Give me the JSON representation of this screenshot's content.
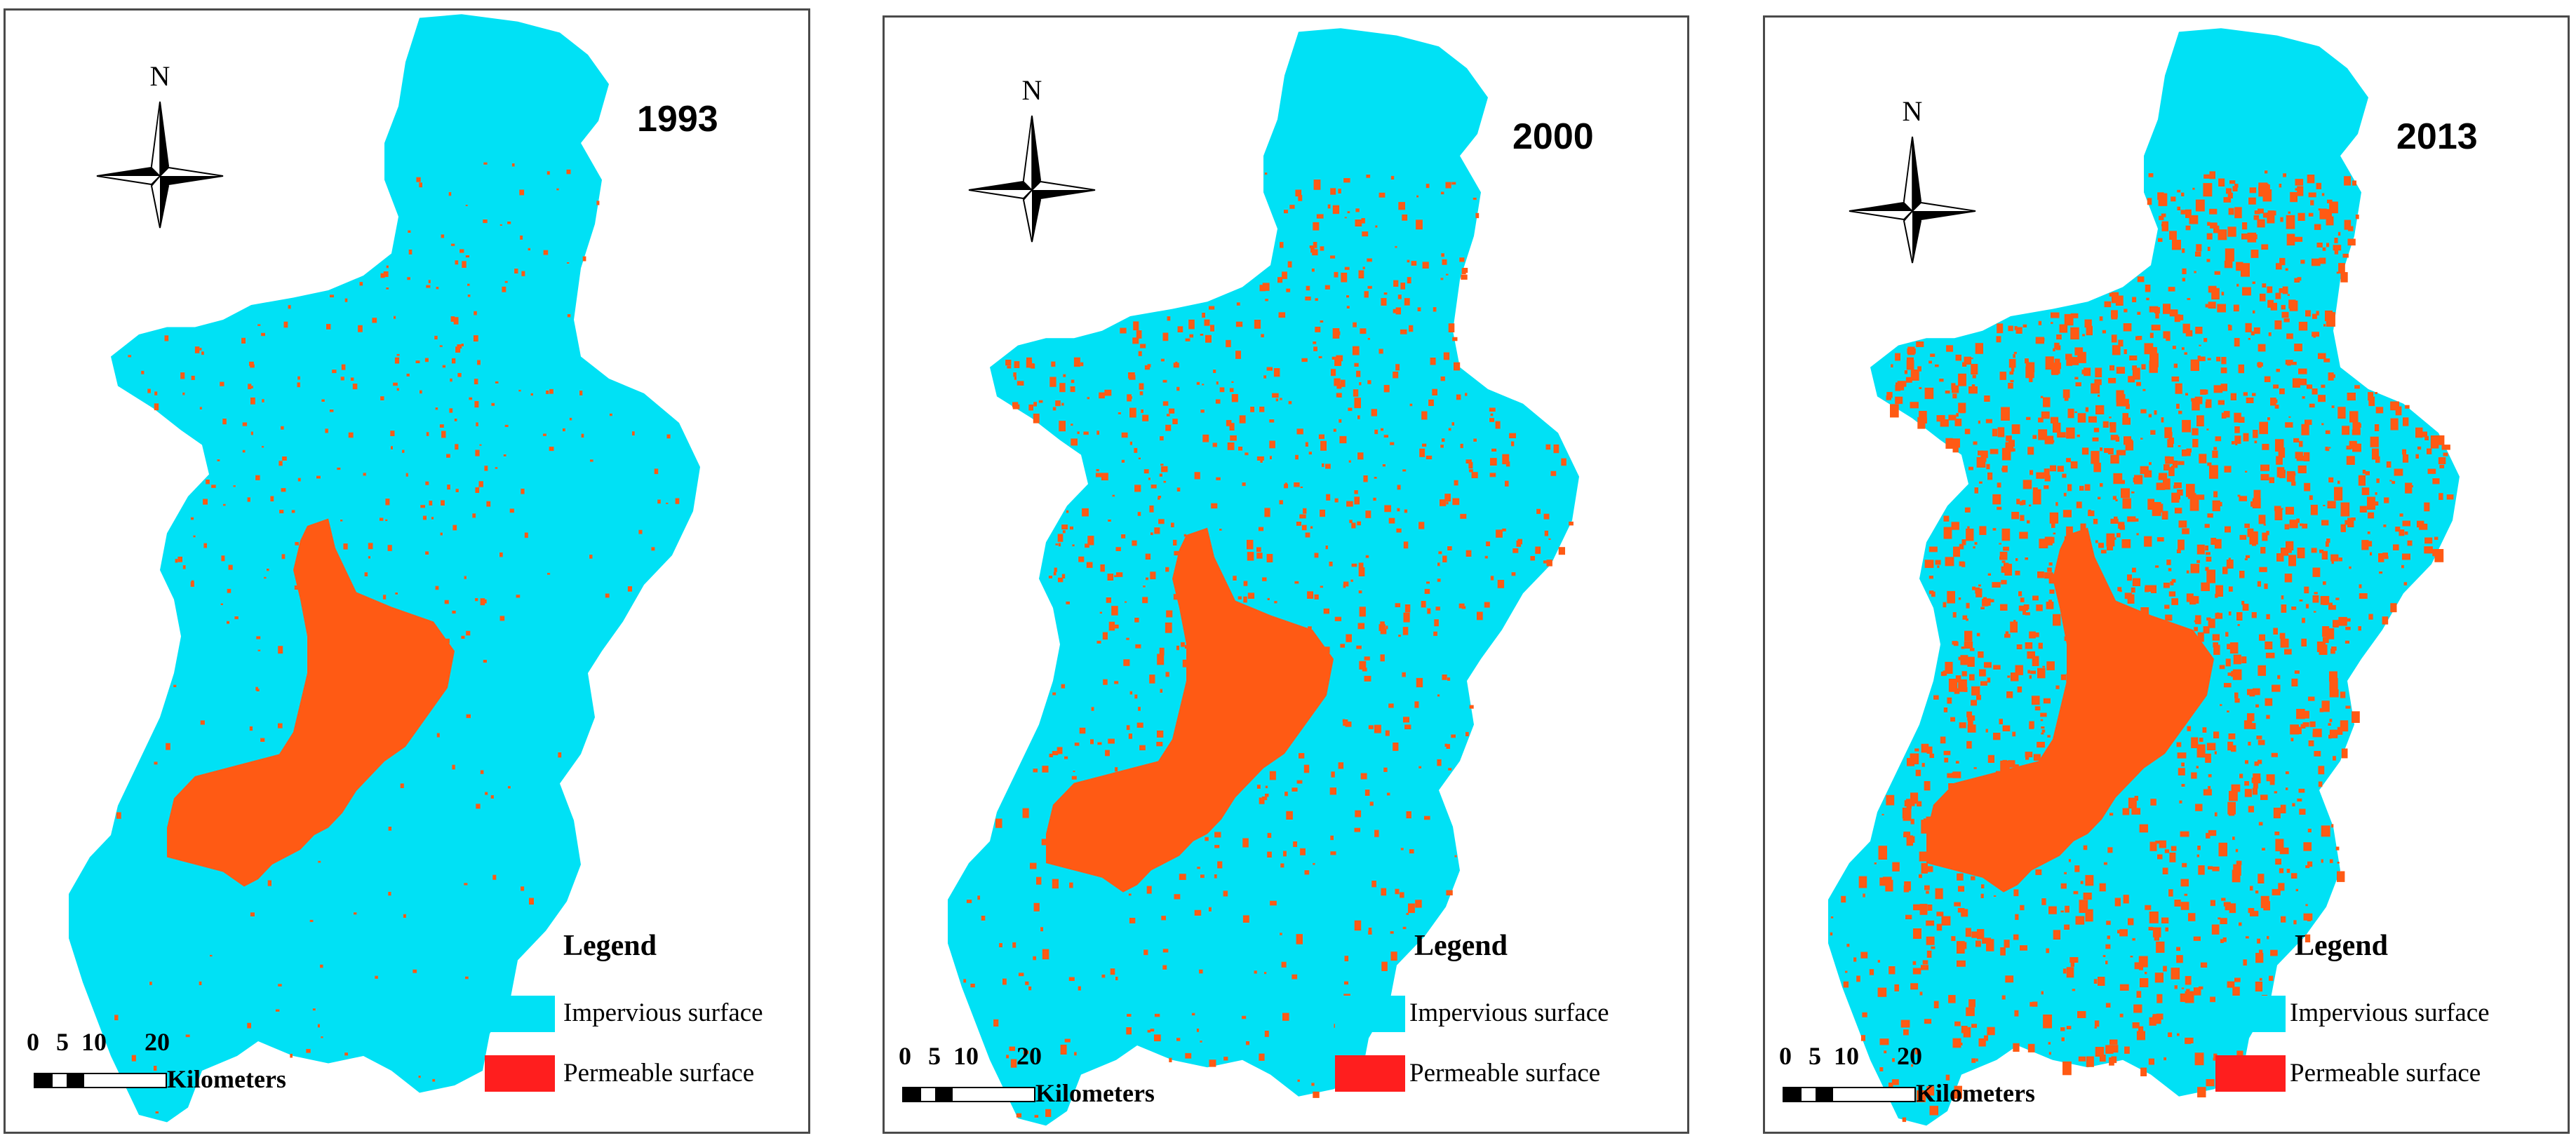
{
  "colors": {
    "impervious": "#00e1f5",
    "lake": "#ff5a14",
    "permeable_swatch": "#ff1e1e",
    "frame": "#4a4a4a"
  },
  "north_label": "N",
  "legend": {
    "title": "Legend",
    "items": [
      {
        "label": "Impervious surface",
        "color": "#00e1f5"
      },
      {
        "label": "Permeable surface",
        "color": "#ff1e1e"
      }
    ]
  },
  "scale": {
    "ticks": [
      "0",
      "5",
      "10",
      "20"
    ],
    "unit": "Kilometers"
  },
  "panels": [
    {
      "year": "1993",
      "red_coverage": 0.05
    },
    {
      "year": "2000",
      "red_coverage": 0.12
    },
    {
      "year": "2013",
      "red_coverage": 0.35
    }
  ]
}
